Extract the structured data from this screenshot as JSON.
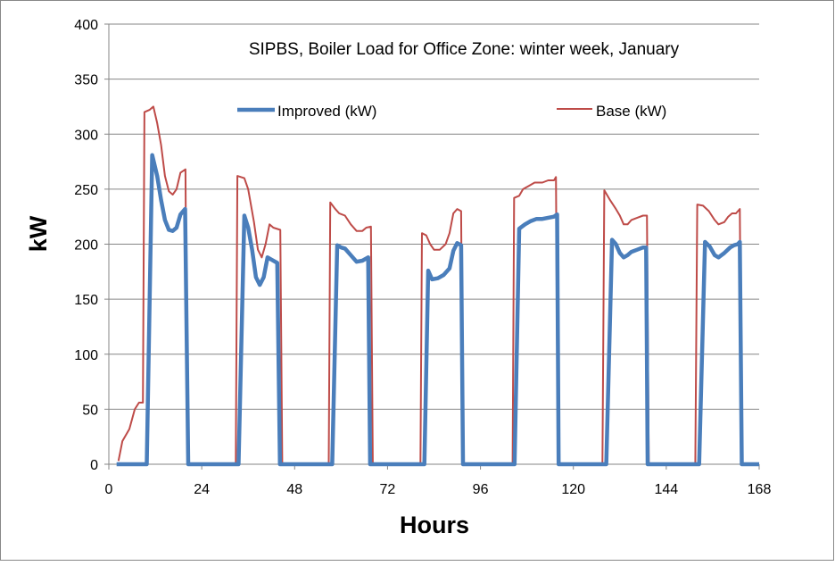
{
  "chart_data": {
    "type": "line",
    "title": "SIPBS, Boiler Load for Office  Zone: winter week, January",
    "xlabel": "Hours",
    "ylabel": "kW",
    "xlim": [
      0,
      168
    ],
    "ylim": [
      0,
      400
    ],
    "xticks": [
      0,
      24,
      48,
      72,
      96,
      120,
      144,
      168
    ],
    "yticks": [
      0,
      50,
      100,
      150,
      200,
      250,
      300,
      350,
      400
    ],
    "grid": "horizontal",
    "legend": "top",
    "series": [
      {
        "name": "Improved (kW)",
        "color": "#4a7ebb",
        "points": [
          [
            2,
            0
          ],
          [
            9.8,
            0
          ],
          [
            11.2,
            281
          ],
          [
            12.5,
            262
          ],
          [
            13.5,
            240
          ],
          [
            14.5,
            222
          ],
          [
            15.5,
            213
          ],
          [
            16.5,
            212
          ],
          [
            17.5,
            215
          ],
          [
            18.5,
            227
          ],
          [
            19.7,
            232
          ],
          [
            20.5,
            0
          ],
          [
            33.5,
            0
          ],
          [
            35,
            226
          ],
          [
            36,
            215
          ],
          [
            37,
            195
          ],
          [
            38,
            170
          ],
          [
            39,
            163
          ],
          [
            40,
            170
          ],
          [
            41,
            188
          ],
          [
            42,
            186
          ],
          [
            43.5,
            183
          ],
          [
            44.2,
            0
          ],
          [
            57.7,
            0
          ],
          [
            59,
            199
          ],
          [
            60,
            197
          ],
          [
            61,
            196
          ],
          [
            62.5,
            190
          ],
          [
            64,
            184
          ],
          [
            65.5,
            185
          ],
          [
            67,
            188
          ],
          [
            67.5,
            0
          ],
          [
            81.5,
            0
          ],
          [
            82.5,
            176
          ],
          [
            83.5,
            168
          ],
          [
            85,
            169
          ],
          [
            86.5,
            172
          ],
          [
            88,
            178
          ],
          [
            89,
            194
          ],
          [
            90,
            201
          ],
          [
            91,
            199
          ],
          [
            91.5,
            0
          ],
          [
            104.8,
            0
          ],
          [
            106,
            214
          ],
          [
            107.5,
            218
          ],
          [
            109,
            221
          ],
          [
            110.5,
            223
          ],
          [
            112,
            223
          ],
          [
            113.5,
            224
          ],
          [
            115,
            225
          ],
          [
            115.8,
            227
          ],
          [
            116.2,
            0
          ],
          [
            128.5,
            0
          ],
          [
            130,
            204
          ],
          [
            131,
            200
          ],
          [
            132,
            192
          ],
          [
            133,
            188
          ],
          [
            134,
            190
          ],
          [
            135,
            193
          ],
          [
            136.5,
            195
          ],
          [
            138,
            197
          ],
          [
            138.8,
            197
          ],
          [
            139.2,
            0
          ],
          [
            152.5,
            0
          ],
          [
            154,
            202
          ],
          [
            155.2,
            198
          ],
          [
            156.5,
            190
          ],
          [
            157.5,
            188
          ],
          [
            159,
            192
          ],
          [
            160.5,
            197
          ],
          [
            161.5,
            199
          ],
          [
            162.5,
            200
          ],
          [
            163,
            202
          ],
          [
            163.5,
            0
          ],
          [
            168,
            0
          ]
        ]
      },
      {
        "name": "Base (kW)",
        "color": "#be4b48",
        "points": [
          [
            2.5,
            3
          ],
          [
            3.5,
            21
          ],
          [
            5.3,
            32
          ],
          [
            6.7,
            50
          ],
          [
            7.8,
            56
          ],
          [
            8.8,
            56
          ],
          [
            9.2,
            320
          ],
          [
            10.5,
            322
          ],
          [
            11.5,
            325
          ],
          [
            12.5,
            310
          ],
          [
            13.5,
            290
          ],
          [
            14.5,
            262
          ],
          [
            15.5,
            248
          ],
          [
            16.5,
            245
          ],
          [
            17.5,
            250
          ],
          [
            18.5,
            265
          ],
          [
            19.8,
            268
          ],
          [
            20.3,
            0
          ],
          [
            32.8,
            0
          ],
          [
            33.2,
            262
          ],
          [
            35,
            260
          ],
          [
            36,
            250
          ],
          [
            37.5,
            220
          ],
          [
            38.5,
            195
          ],
          [
            39.5,
            188
          ],
          [
            40.5,
            200
          ],
          [
            41.5,
            218
          ],
          [
            42.5,
            215
          ],
          [
            44.3,
            213
          ],
          [
            44.8,
            0
          ],
          [
            56.8,
            0
          ],
          [
            57.2,
            238
          ],
          [
            58.5,
            232
          ],
          [
            59.5,
            228
          ],
          [
            61,
            226
          ],
          [
            62.5,
            218
          ],
          [
            64,
            212
          ],
          [
            65.5,
            212
          ],
          [
            66.5,
            215
          ],
          [
            67.7,
            216
          ],
          [
            68.2,
            0
          ],
          [
            80.5,
            0
          ],
          [
            80.9,
            210
          ],
          [
            82,
            208
          ],
          [
            83,
            200
          ],
          [
            84,
            195
          ],
          [
            85.5,
            195
          ],
          [
            87,
            200
          ],
          [
            88,
            210
          ],
          [
            89,
            228
          ],
          [
            90,
            232
          ],
          [
            91,
            230
          ],
          [
            91.5,
            0
          ],
          [
            104.3,
            0
          ],
          [
            104.7,
            242
          ],
          [
            106,
            244
          ],
          [
            107,
            250
          ],
          [
            108.5,
            253
          ],
          [
            110,
            256
          ],
          [
            112,
            256
          ],
          [
            113.5,
            258
          ],
          [
            115,
            258
          ],
          [
            115.5,
            261
          ],
          [
            116,
            0
          ],
          [
            127.5,
            0
          ],
          [
            128,
            249
          ],
          [
            129.5,
            240
          ],
          [
            131,
            232
          ],
          [
            132,
            226
          ],
          [
            133,
            218
          ],
          [
            134,
            218
          ],
          [
            135,
            222
          ],
          [
            136.5,
            224
          ],
          [
            138,
            226
          ],
          [
            139,
            226
          ],
          [
            139.5,
            0
          ],
          [
            151.5,
            0
          ],
          [
            152,
            236
          ],
          [
            153.5,
            235
          ],
          [
            155,
            230
          ],
          [
            156.5,
            222
          ],
          [
            157.5,
            218
          ],
          [
            159,
            220
          ],
          [
            160,
            225
          ],
          [
            161,
            228
          ],
          [
            162,
            228
          ],
          [
            163,
            232
          ],
          [
            163.5,
            0
          ],
          [
            168,
            0
          ]
        ]
      }
    ]
  }
}
